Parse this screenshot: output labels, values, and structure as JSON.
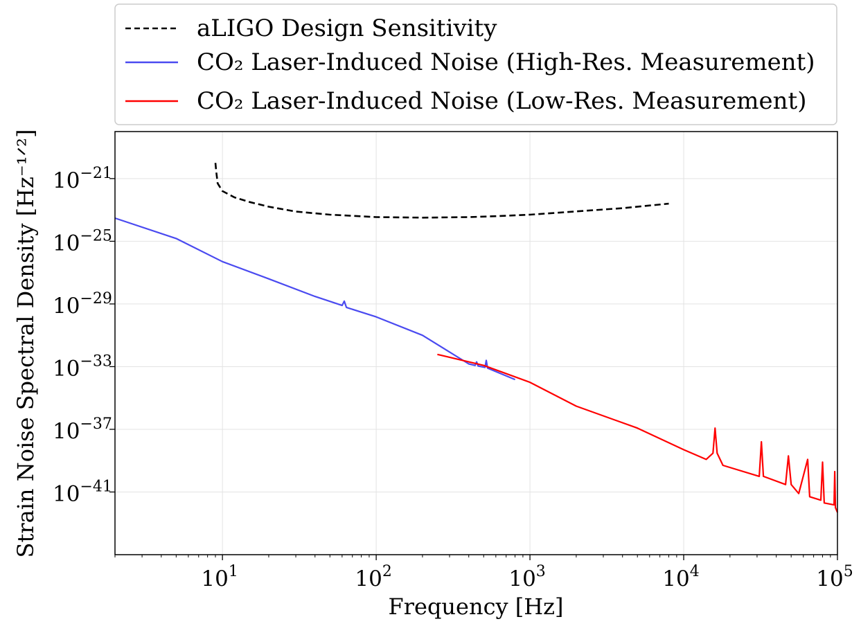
{
  "chart_data": {
    "type": "line",
    "xlabel": "Frequency [Hz]",
    "ylabel": "Strain Noise Spectral Density [Hz^(-1/2)]",
    "xscale": "log",
    "yscale": "log",
    "xlim": [
      2,
      100000
    ],
    "ylim": [
      1e-45,
      1e-18
    ],
    "grid": true,
    "legend_position": "top, above plot",
    "x_ticks": [
      {
        "base": "10",
        "exp": "1",
        "value": 10
      },
      {
        "base": "10",
        "exp": "2",
        "value": 100
      },
      {
        "base": "10",
        "exp": "3",
        "value": 1000
      },
      {
        "base": "10",
        "exp": "4",
        "value": 10000
      },
      {
        "base": "10",
        "exp": "5",
        "value": 100000
      }
    ],
    "y_ticks": [
      {
        "base": "10",
        "exp": "−21",
        "value": 1e-21
      },
      {
        "base": "10",
        "exp": "−25",
        "value": 1e-25
      },
      {
        "base": "10",
        "exp": "−29",
        "value": 1e-29
      },
      {
        "base": "10",
        "exp": "−33",
        "value": 1e-33
      },
      {
        "base": "10",
        "exp": "−37",
        "value": 1e-37
      },
      {
        "base": "10",
        "exp": "−41",
        "value": 1e-41
      }
    ],
    "series": [
      {
        "name": "aLIGO Design Sensitivity",
        "color": "#000000",
        "style": "dashed",
        "points": [
          [
            9,
            1e-20
          ],
          [
            9.1,
            3e-21
          ],
          [
            9.3,
            5e-22
          ],
          [
            10,
            1.6e-22
          ],
          [
            12,
            6.3e-23
          ],
          [
            15,
            3.2e-23
          ],
          [
            20,
            1.6e-23
          ],
          [
            30,
            7.9e-24
          ],
          [
            50,
            5e-24
          ],
          [
            100,
            3.5e-24
          ],
          [
            200,
            3.2e-24
          ],
          [
            400,
            3.5e-24
          ],
          [
            600,
            4e-24
          ],
          [
            1000,
            5e-24
          ],
          [
            2000,
            8e-24
          ],
          [
            4000,
            1.3e-23
          ],
          [
            8000,
            2.5e-23
          ]
        ]
      },
      {
        "name": "CO₂ Laser-Induced Noise (High-Res. Measurement)",
        "color": "#4a4af0",
        "style": "solid",
        "points": [
          [
            2,
            3e-24
          ],
          [
            5,
            1.5e-25
          ],
          [
            10,
            5e-27
          ],
          [
            20,
            4e-28
          ],
          [
            40,
            3e-29
          ],
          [
            60,
            8e-30
          ],
          [
            62,
            1.5e-29
          ],
          [
            64,
            6e-30
          ],
          [
            100,
            1.5e-30
          ],
          [
            200,
            1e-31
          ],
          [
            400,
            1.5e-33
          ],
          [
            440,
            1.2e-33
          ],
          [
            450,
            2e-33
          ],
          [
            460,
            1.1e-33
          ],
          [
            510,
            9e-34
          ],
          [
            520,
            2.5e-33
          ],
          [
            530,
            8e-34
          ],
          [
            800,
            1.5e-34
          ]
        ]
      },
      {
        "name": "CO₂ Laser-Induced Noise (Low-Res. Measurement)",
        "color": "#ff0000",
        "style": "solid",
        "points": [
          [
            250,
            6e-33
          ],
          [
            500,
            1.2e-33
          ],
          [
            1000,
            1e-34
          ],
          [
            2000,
            3e-36
          ],
          [
            5000,
            1.2e-37
          ],
          [
            10000,
            5e-39
          ],
          [
            14000,
            1.2e-39
          ],
          [
            15500,
            3e-39
          ],
          [
            16000,
            1.2e-37
          ],
          [
            16500,
            3e-39
          ],
          [
            18000,
            5e-40
          ],
          [
            31000,
            1e-40
          ],
          [
            32000,
            1.6e-38
          ],
          [
            33000,
            1e-40
          ],
          [
            46000,
            3e-41
          ],
          [
            48000,
            2e-39
          ],
          [
            50000,
            3e-41
          ],
          [
            56000,
            8e-42
          ],
          [
            64000,
            1.2e-39
          ],
          [
            66000,
            5e-42
          ],
          [
            78000,
            3e-42
          ],
          [
            80000,
            8e-40
          ],
          [
            82000,
            2e-42
          ],
          [
            95000,
            1.5e-42
          ],
          [
            96000,
            2e-40
          ],
          [
            97000,
            1e-42
          ],
          [
            100000,
            5e-43
          ]
        ]
      }
    ]
  },
  "legend": {
    "aligo": "aLIGO Design Sensitivity",
    "high_res": "CO₂ Laser-Induced Noise (High-Res. Measurement)",
    "low_res": "CO₂ Laser-Induced Noise (Low-Res. Measurement)"
  },
  "axes": {
    "xlabel": "Frequency [Hz]",
    "ylabel": "Strain Noise Spectral Density [Hz⁻¹ᐟ²]"
  }
}
